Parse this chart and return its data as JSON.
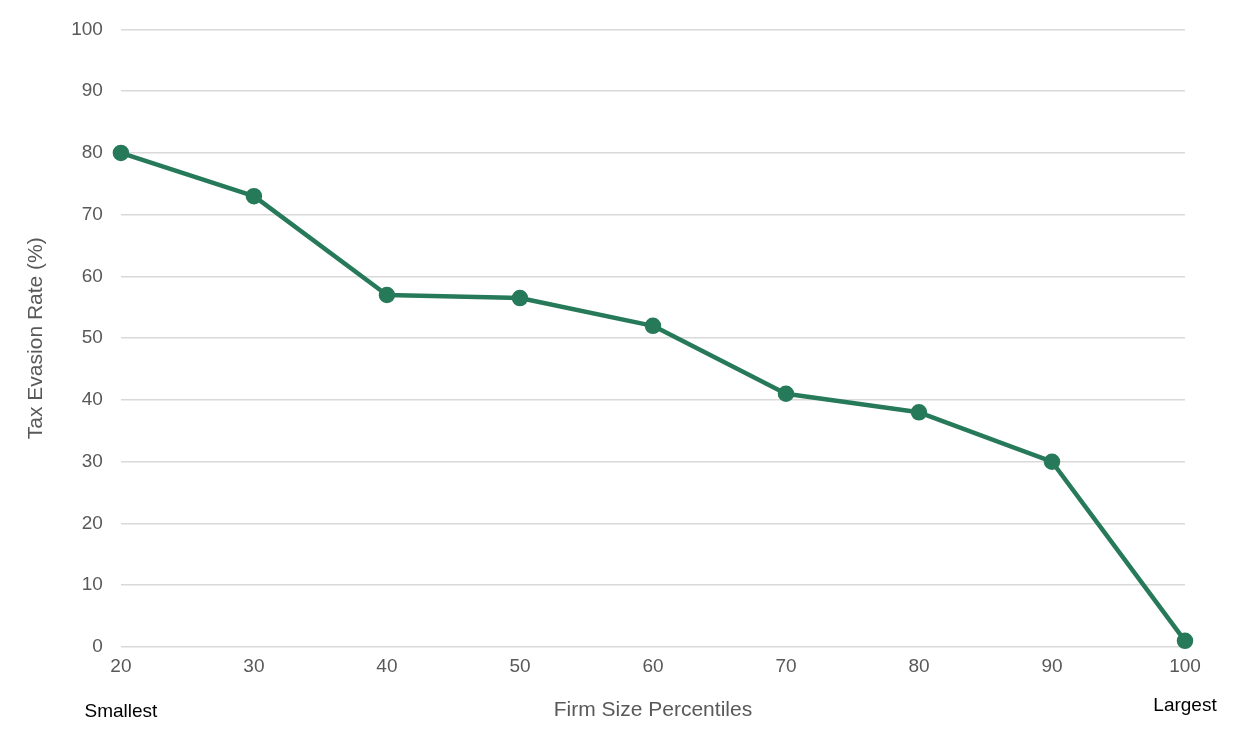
{
  "chart_data": {
    "type": "line",
    "xlabel": "Firm Size Percentiles",
    "ylabel": "Tax Evasion Rate (%)",
    "x": [
      20,
      30,
      40,
      50,
      60,
      70,
      80,
      90,
      100
    ],
    "series": [
      {
        "color": "#267a5a",
        "values": [
          80,
          73,
          57,
          56.5,
          52,
          41,
          38,
          30,
          1
        ]
      }
    ],
    "xlim": [
      20,
      100
    ],
    "xticks": [
      20,
      30,
      40,
      50,
      60,
      70,
      80,
      90,
      100
    ],
    "ylim": [
      0,
      100
    ],
    "yticks": [
      0,
      10,
      20,
      30,
      40,
      50,
      60,
      70,
      80,
      90,
      100
    ],
    "grid": "y",
    "legend": false,
    "marker": "circle",
    "line_style": "solid",
    "annotations": [
      "Smallest",
      "Largest"
    ]
  }
}
